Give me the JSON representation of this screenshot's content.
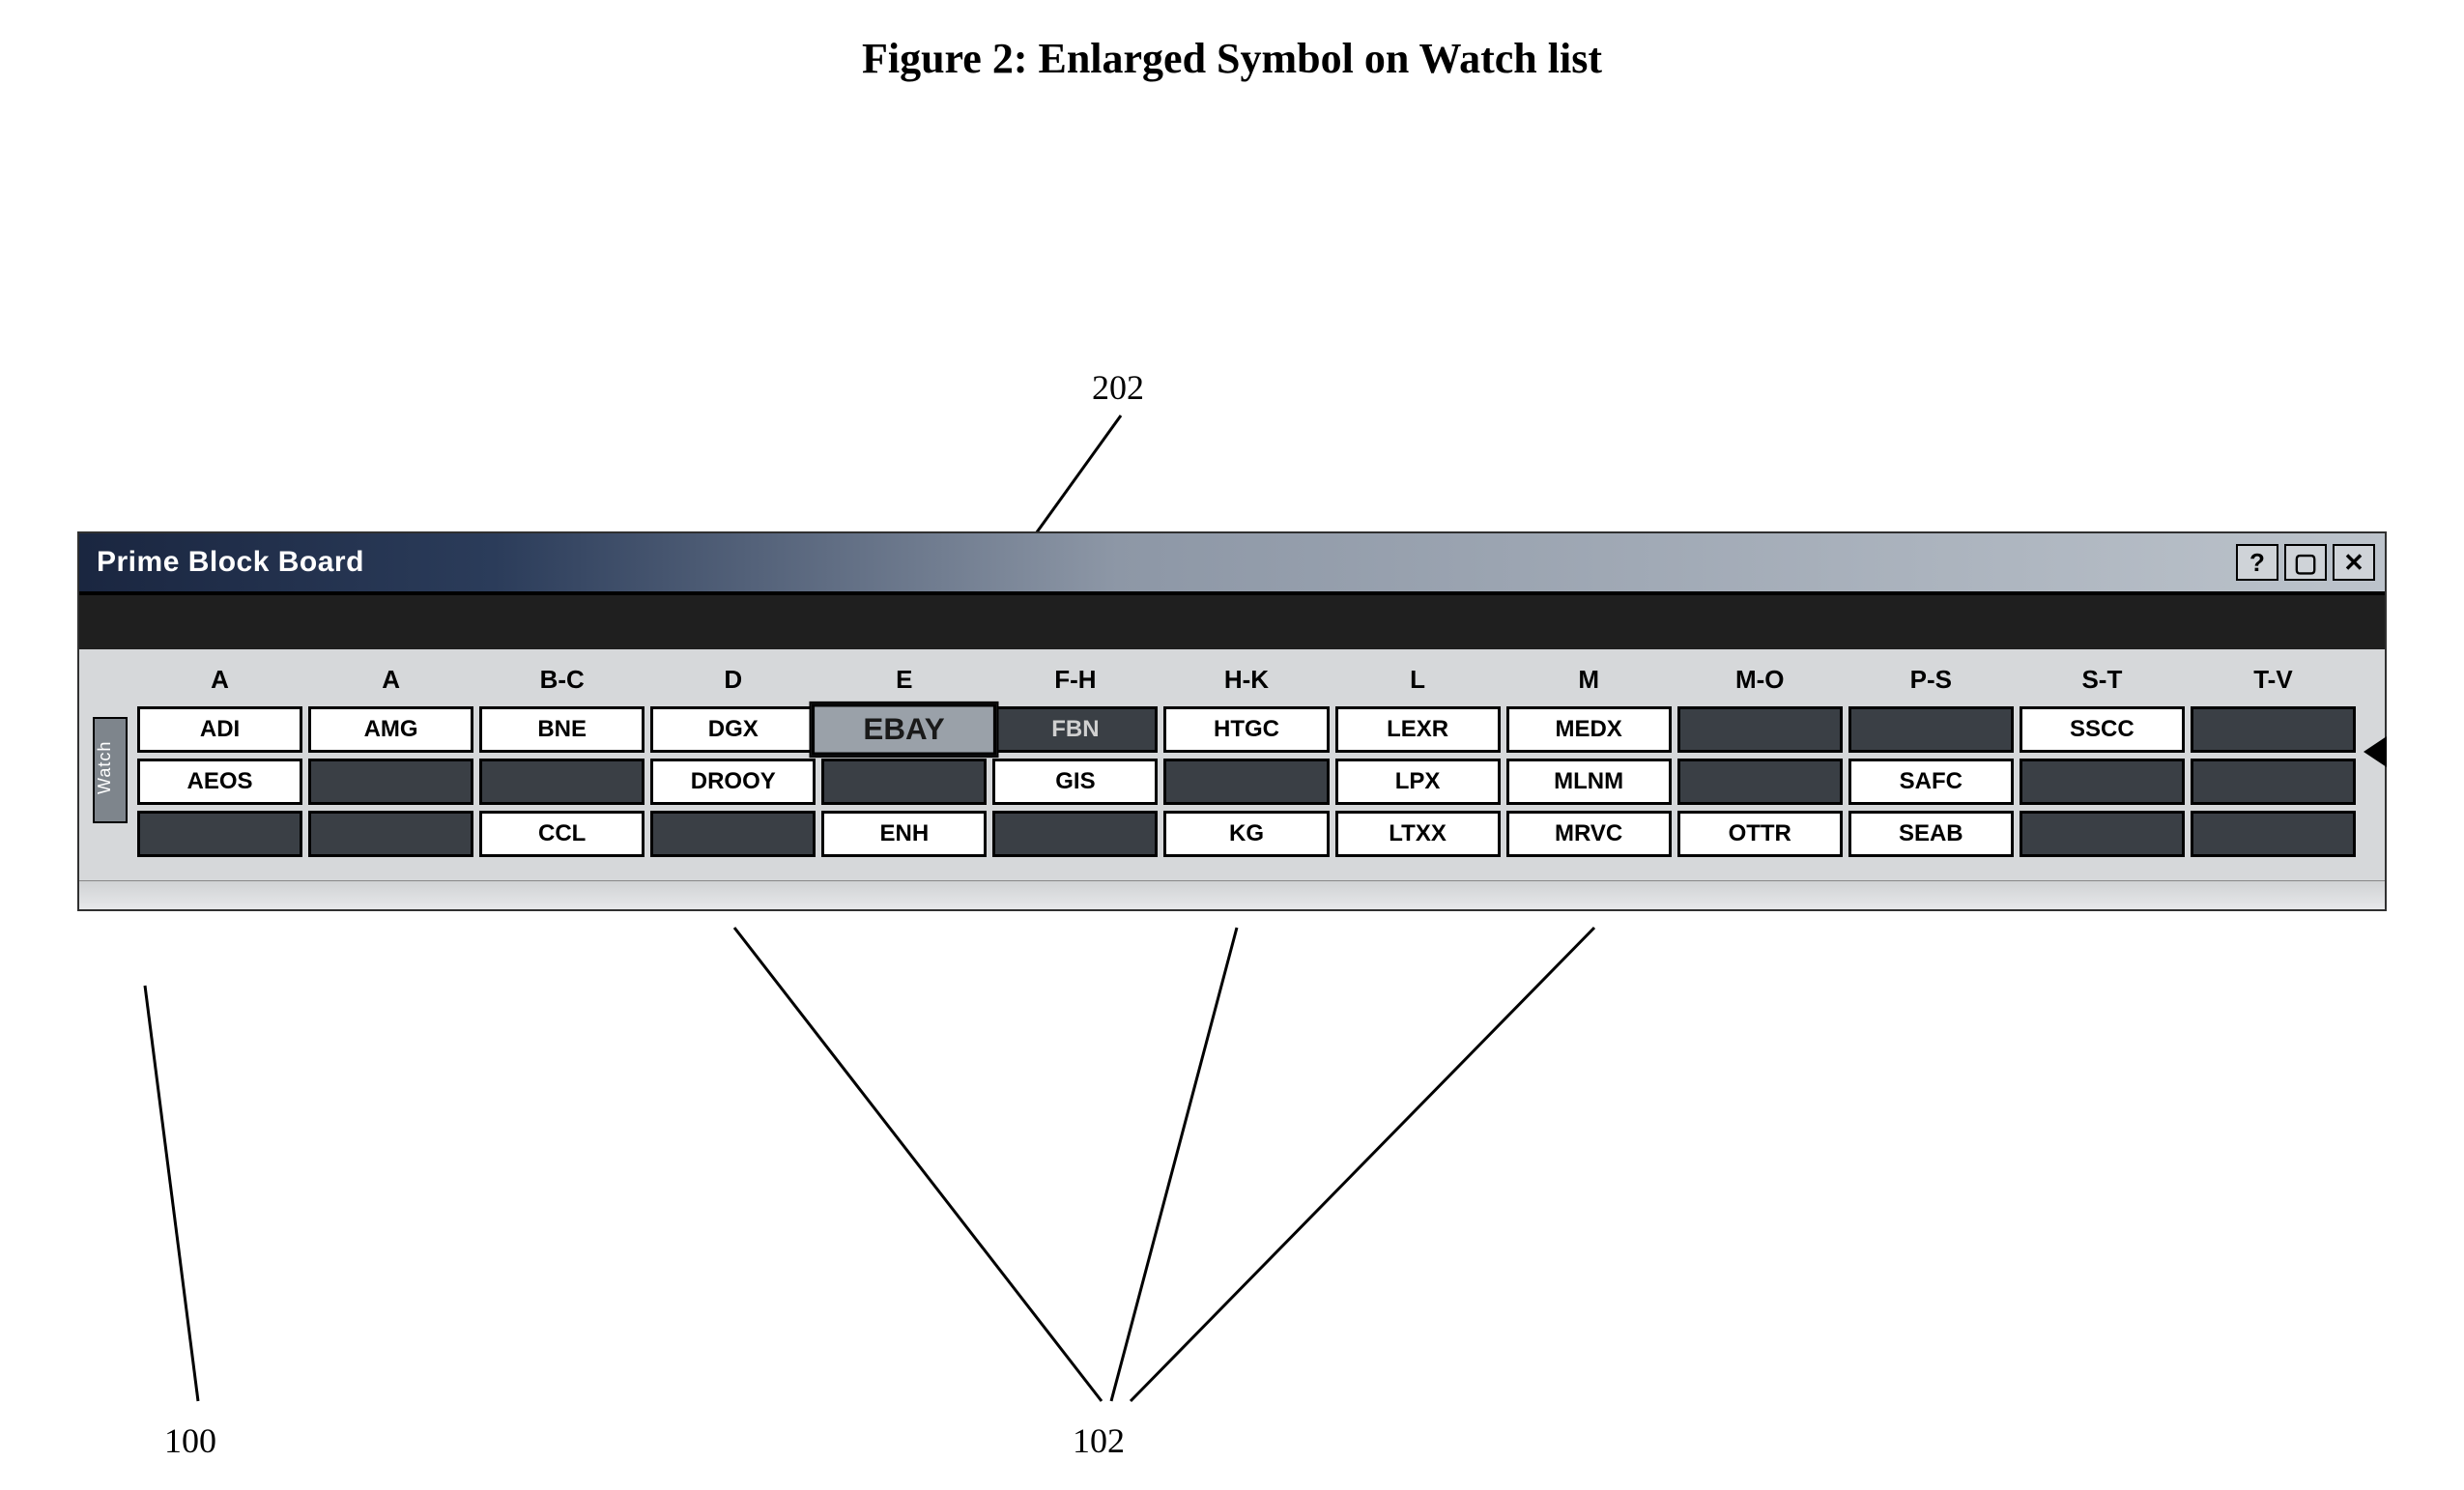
{
  "figure": {
    "title": "Figure 2: Enlarged Symbol on Watch list",
    "callouts": {
      "topRight": "202",
      "bottomLeft": "100",
      "bottomCenter": "102"
    }
  },
  "window": {
    "title": "Prime Block Board",
    "titlebar": {
      "textColor": "#ffffff"
    },
    "buttons": {
      "help": "?",
      "minimize": "▢",
      "close": "✕"
    },
    "sideTab": "Watch",
    "columns": [
      "A",
      "A",
      "B-C",
      "D",
      "E",
      "F-H",
      "H-K",
      "L",
      "M",
      "M-O",
      "P-S",
      "S-T",
      "T-V"
    ],
    "enlarged": {
      "row": 0,
      "col": 4
    },
    "colors": {
      "light": "#ffffff",
      "med": "#9aa1a9",
      "dark": "#3a3f45",
      "border": "#000000"
    },
    "rows": [
      [
        {
          "t": "ADI",
          "s": "light"
        },
        {
          "t": "AMG",
          "s": "light"
        },
        {
          "t": "BNE",
          "s": "light"
        },
        {
          "t": "DGX",
          "s": "light"
        },
        {
          "t": "EBAY",
          "s": "med"
        },
        {
          "t": "FBN",
          "s": "dark"
        },
        {
          "t": "HTGC",
          "s": "light"
        },
        {
          "t": "LEXR",
          "s": "light"
        },
        {
          "t": "MEDX",
          "s": "light"
        },
        {
          "t": "",
          "s": "dark"
        },
        {
          "t": "",
          "s": "dark"
        },
        {
          "t": "SSCC",
          "s": "light"
        },
        {
          "t": "",
          "s": "dark"
        }
      ],
      [
        {
          "t": "AEOS",
          "s": "light"
        },
        {
          "t": "",
          "s": "dark"
        },
        {
          "t": "",
          "s": "dark"
        },
        {
          "t": "DROOY",
          "s": "light"
        },
        {
          "t": "",
          "s": "dark"
        },
        {
          "t": "GIS",
          "s": "light"
        },
        {
          "t": "",
          "s": "dark"
        },
        {
          "t": "LPX",
          "s": "light"
        },
        {
          "t": "MLNM",
          "s": "light"
        },
        {
          "t": "",
          "s": "dark"
        },
        {
          "t": "SAFC",
          "s": "light"
        },
        {
          "t": "",
          "s": "dark"
        },
        {
          "t": "",
          "s": "dark"
        }
      ],
      [
        {
          "t": "",
          "s": "dark"
        },
        {
          "t": "",
          "s": "dark"
        },
        {
          "t": "CCL",
          "s": "light"
        },
        {
          "t": "",
          "s": "dark"
        },
        {
          "t": "ENH",
          "s": "light"
        },
        {
          "t": "",
          "s": "dark"
        },
        {
          "t": "KG",
          "s": "light"
        },
        {
          "t": "LTXX",
          "s": "light"
        },
        {
          "t": "MRVC",
          "s": "light"
        },
        {
          "t": "OTTR",
          "s": "light"
        },
        {
          "t": "SEAB",
          "s": "light"
        },
        {
          "t": "",
          "s": "dark"
        },
        {
          "t": "",
          "s": "dark"
        }
      ]
    ]
  }
}
